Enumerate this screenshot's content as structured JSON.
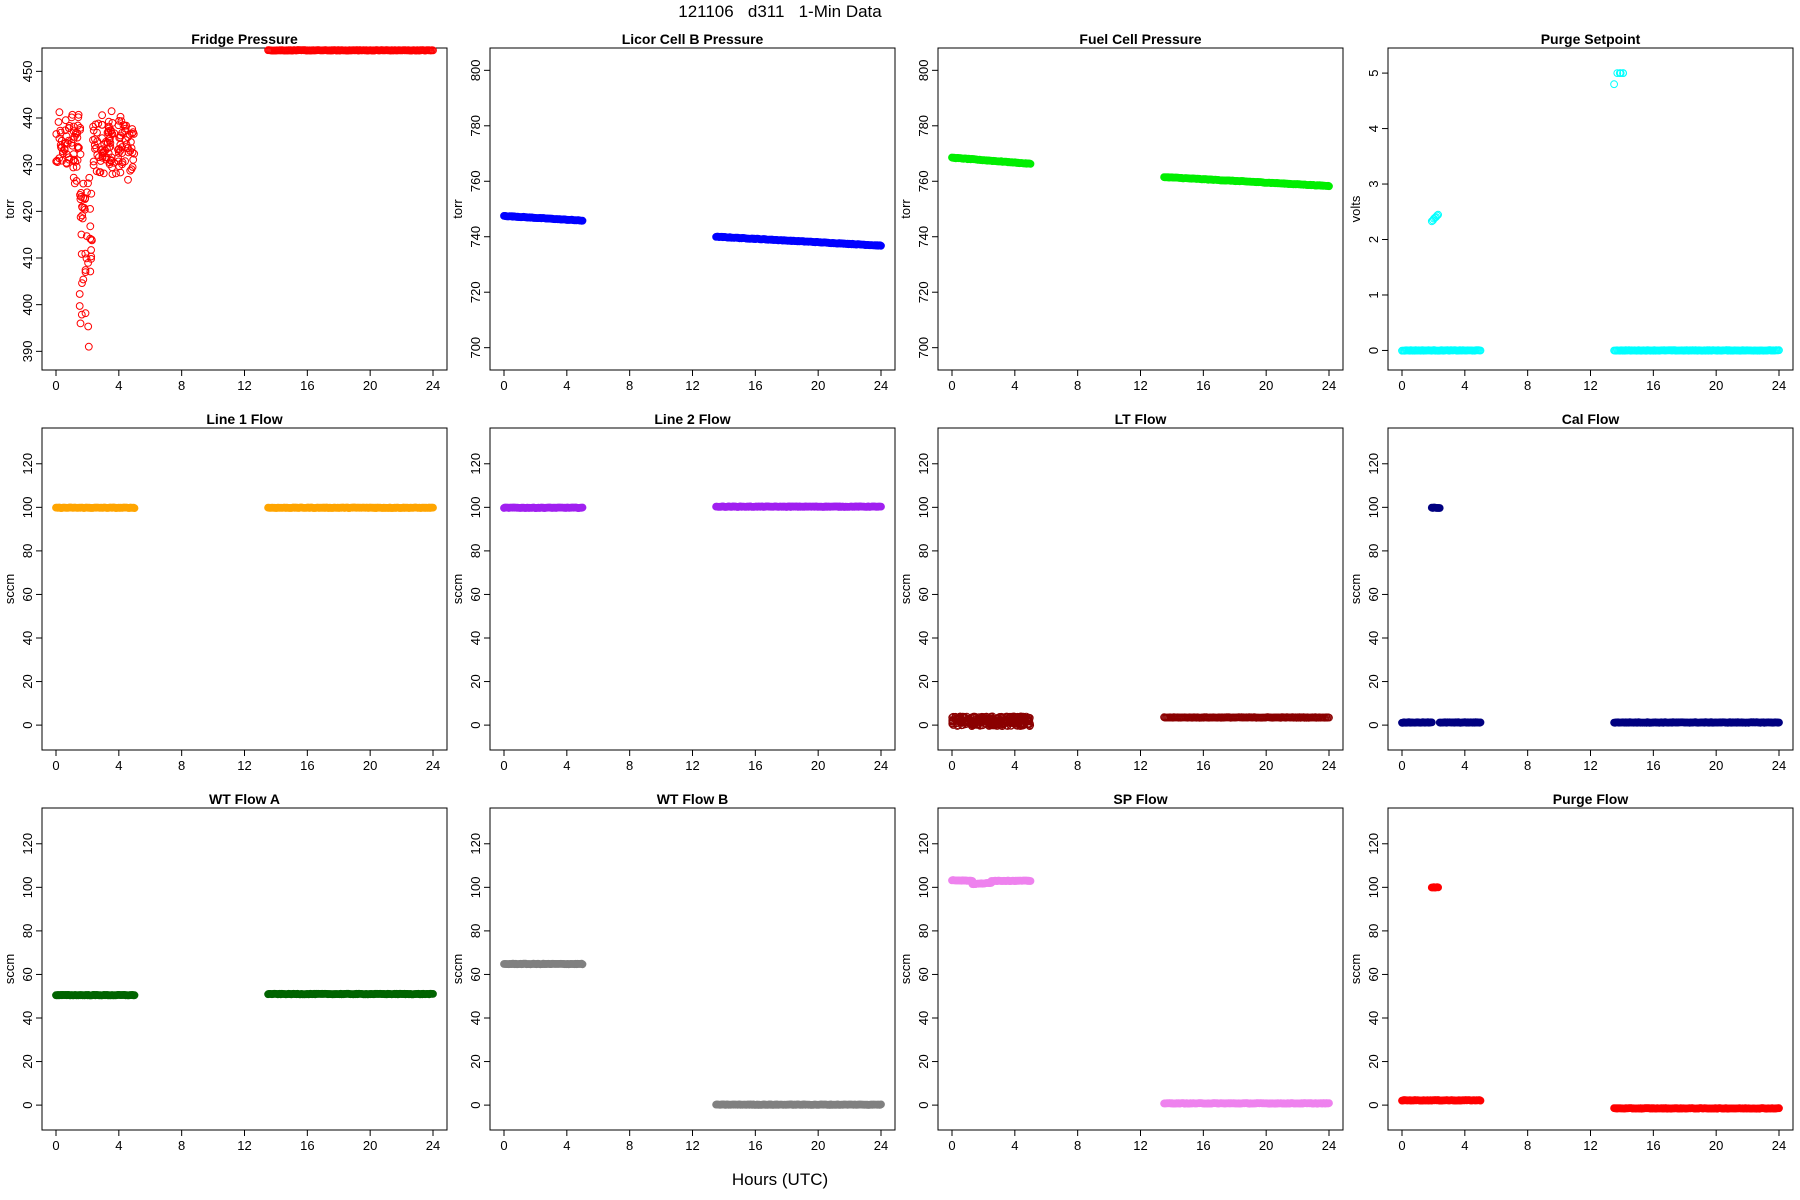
{
  "page": {
    "title": "121106   d311   1-Min Data",
    "x_axis_label": "Hours (UTC)"
  },
  "chart_data": [
    {
      "type": "scatter",
      "title": "Fridge Pressure",
      "ylabel": "torr",
      "xlim": [
        0,
        24
      ],
      "ylim": [
        389,
        452
      ],
      "xticks": [
        0,
        4,
        8,
        12,
        16,
        20,
        24
      ],
      "yticks": [
        390,
        400,
        410,
        420,
        430,
        440,
        450
      ],
      "color": "#ff0000",
      "marker": "open-circle",
      "series": [
        {
          "x": [
            0,
            5
          ],
          "y_range": [
            424,
            444
          ],
          "note_pattern": "scatter"
        },
        {
          "x": [
            1.5,
            2.3
          ],
          "y_range": [
            390,
            428
          ],
          "pattern": "drop"
        },
        {
          "x": [
            13.5,
            24
          ],
          "y": [
            454.5,
            454.5
          ],
          "pattern": "line"
        }
      ]
    },
    {
      "type": "scatter",
      "title": "Licor Cell B Pressure",
      "ylabel": "torr",
      "xlim": [
        0,
        24
      ],
      "ylim": [
        697,
        803
      ],
      "xticks": [
        0,
        4,
        8,
        12,
        16,
        20,
        24
      ],
      "yticks": [
        700,
        720,
        740,
        760,
        780,
        800
      ],
      "color": "#0000ff",
      "marker": "filled",
      "series": [
        {
          "x": [
            0,
            5
          ],
          "y": [
            747.5,
            745.8
          ],
          "pattern": "line"
        },
        {
          "x": [
            13.5,
            24
          ],
          "y": [
            740,
            736.8
          ],
          "pattern": "line"
        }
      ]
    },
    {
      "type": "scatter",
      "title": "Fuel Cell Pressure",
      "ylabel": "torr",
      "xlim": [
        0,
        24
      ],
      "ylim": [
        697,
        803
      ],
      "xticks": [
        0,
        4,
        8,
        12,
        16,
        20,
        24
      ],
      "yticks": [
        700,
        720,
        740,
        760,
        780,
        800
      ],
      "color": "#00ee00",
      "marker": "filled",
      "series": [
        {
          "x": [
            0,
            5
          ],
          "y": [
            768.5,
            766.3
          ],
          "pattern": "line"
        },
        {
          "x": [
            13.5,
            24
          ],
          "y": [
            761.5,
            758.3
          ],
          "pattern": "line"
        }
      ]
    },
    {
      "type": "scatter",
      "title": "Purge Setpoint",
      "ylabel": "volts",
      "xlim": [
        0,
        24
      ],
      "ylim": [
        -0.1,
        5.2
      ],
      "xticks": [
        0,
        4,
        8,
        12,
        16,
        20,
        24
      ],
      "yticks": [
        0,
        1,
        2,
        3,
        4,
        5
      ],
      "color": "#00ffff",
      "marker": "open-circle",
      "series": [
        {
          "x": [
            0,
            5
          ],
          "y": [
            0,
            0
          ],
          "pattern": "line"
        },
        {
          "x": [
            1.9,
            2.3
          ],
          "y": [
            2.33,
            2.45
          ],
          "pattern": "line"
        },
        {
          "x": [
            13.5,
            14.1
          ],
          "y": [
            4.8,
            5.0
          ],
          "pattern": "cluster"
        },
        {
          "x": [
            13.5,
            24
          ],
          "y": [
            0,
            0
          ],
          "pattern": "line"
        }
      ]
    },
    {
      "type": "scatter",
      "title": "Line 1 Flow",
      "ylabel": "sccm",
      "xlim": [
        0,
        24
      ],
      "ylim": [
        -5,
        130
      ],
      "xticks": [
        0,
        4,
        8,
        12,
        16,
        20,
        24
      ],
      "yticks": [
        0,
        20,
        40,
        60,
        80,
        100,
        120
      ],
      "color": "#ffa500",
      "marker": "filled",
      "series": [
        {
          "x": [
            0,
            5
          ],
          "y": [
            99.8,
            99.8
          ],
          "pattern": "line"
        },
        {
          "x": [
            13.5,
            24
          ],
          "y": [
            99.8,
            99.8
          ],
          "pattern": "line"
        }
      ]
    },
    {
      "type": "scatter",
      "title": "Line 2 Flow",
      "ylabel": "sccm",
      "xlim": [
        0,
        24
      ],
      "ylim": [
        -5,
        130
      ],
      "xticks": [
        0,
        4,
        8,
        12,
        16,
        20,
        24
      ],
      "yticks": [
        0,
        20,
        40,
        60,
        80,
        100,
        120
      ],
      "color": "#a020f0",
      "marker": "filled",
      "series": [
        {
          "x": [
            0,
            5
          ],
          "y": [
            99.8,
            99.8
          ],
          "pattern": "line"
        },
        {
          "x": [
            13.5,
            24
          ],
          "y": [
            100.3,
            100.3
          ],
          "pattern": "line"
        }
      ]
    },
    {
      "type": "scatter",
      "title": "LT Flow",
      "ylabel": "sccm",
      "xlim": [
        0,
        24
      ],
      "ylim": [
        -5,
        130
      ],
      "xticks": [
        0,
        4,
        8,
        12,
        16,
        20,
        24
      ],
      "yticks": [
        0,
        20,
        40,
        60,
        80,
        100,
        120
      ],
      "color": "#8b0000",
      "marker": "open-circle",
      "series": [
        {
          "x": [
            0,
            5
          ],
          "y_range": [
            -0.5,
            4
          ],
          "pattern": "band"
        },
        {
          "x": [
            13.5,
            24
          ],
          "y": [
            3.5,
            3.5
          ],
          "pattern": "line"
        }
      ]
    },
    {
      "type": "scatter",
      "title": "Cal Flow",
      "ylabel": "sccm",
      "xlim": [
        0,
        24
      ],
      "ylim": [
        -5,
        130
      ],
      "xticks": [
        0,
        4,
        8,
        12,
        16,
        20,
        24
      ],
      "yticks": [
        0,
        20,
        40,
        60,
        80,
        100,
        120
      ],
      "color": "#000080",
      "marker": "filled",
      "series": [
        {
          "x": [
            0,
            1.9
          ],
          "y": [
            1.2,
            1.2
          ],
          "pattern": "line"
        },
        {
          "x": [
            1.9,
            2.4
          ],
          "y": [
            99.8,
            99.8
          ],
          "pattern": "line"
        },
        {
          "x": [
            2.4,
            5
          ],
          "y": [
            1.2,
            1.2
          ],
          "pattern": "line"
        },
        {
          "x": [
            13.5,
            24
          ],
          "y": [
            1.2,
            1.2
          ],
          "pattern": "line"
        }
      ]
    },
    {
      "type": "scatter",
      "title": "WT Flow A",
      "ylabel": "sccm",
      "xlim": [
        0,
        24
      ],
      "ylim": [
        -5,
        130
      ],
      "xticks": [
        0,
        4,
        8,
        12,
        16,
        20,
        24
      ],
      "yticks": [
        0,
        20,
        40,
        60,
        80,
        100,
        120
      ],
      "color": "#006400",
      "marker": "filled",
      "series": [
        {
          "x": [
            0,
            5
          ],
          "y": [
            50.5,
            50.5
          ],
          "pattern": "line"
        },
        {
          "x": [
            13.5,
            24
          ],
          "y": [
            51.0,
            51.0
          ],
          "pattern": "line"
        }
      ]
    },
    {
      "type": "scatter",
      "title": "WT Flow B",
      "ylabel": "sccm",
      "xlim": [
        0,
        24
      ],
      "ylim": [
        -5,
        130
      ],
      "xticks": [
        0,
        4,
        8,
        12,
        16,
        20,
        24
      ],
      "yticks": [
        0,
        20,
        40,
        60,
        80,
        100,
        120
      ],
      "color": "#808080",
      "marker": "filled",
      "series": [
        {
          "x": [
            0,
            5
          ],
          "y": [
            64.8,
            64.8
          ],
          "pattern": "line"
        },
        {
          "x": [
            13.5,
            24
          ],
          "y": [
            0.2,
            0.2
          ],
          "pattern": "line"
        }
      ]
    },
    {
      "type": "scatter",
      "title": "SP Flow",
      "ylabel": "sccm",
      "xlim": [
        0,
        24
      ],
      "ylim": [
        -5,
        130
      ],
      "xticks": [
        0,
        4,
        8,
        12,
        16,
        20,
        24
      ],
      "yticks": [
        0,
        20,
        40,
        60,
        80,
        100,
        120
      ],
      "color": "#ee82ee",
      "marker": "filled",
      "series": [
        {
          "x": [
            0,
            1.3
          ],
          "y": [
            103.3,
            103.0
          ],
          "pattern": "line"
        },
        {
          "x": [
            1.3,
            2.5
          ],
          "y": [
            101.5,
            102.0
          ],
          "pattern": "line"
        },
        {
          "x": [
            2.5,
            5
          ],
          "y": [
            103.0,
            103.0
          ],
          "pattern": "line"
        },
        {
          "x": [
            13.5,
            24
          ],
          "y": [
            0.8,
            0.8
          ],
          "pattern": "line"
        }
      ]
    },
    {
      "type": "scatter",
      "title": "Purge Flow",
      "ylabel": "sccm",
      "xlim": [
        0,
        24
      ],
      "ylim": [
        -5,
        130
      ],
      "xticks": [
        0,
        4,
        8,
        12,
        16,
        20,
        24
      ],
      "yticks": [
        0,
        20,
        40,
        60,
        80,
        100,
        120
      ],
      "color": "#ff0000",
      "marker": "filled",
      "series": [
        {
          "x": [
            0,
            5
          ],
          "y": [
            2.2,
            2.2
          ],
          "pattern": "line"
        },
        {
          "x": [
            1.9,
            2.3
          ],
          "y": [
            100.0,
            100.0
          ],
          "pattern": "line"
        },
        {
          "x": [
            13.5,
            24
          ],
          "y": [
            -1.5,
            -1.5
          ],
          "pattern": "line"
        }
      ]
    }
  ]
}
